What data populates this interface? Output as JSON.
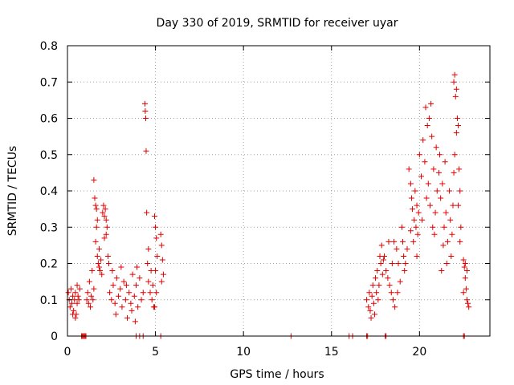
{
  "chart_data": {
    "type": "scatter",
    "title": "Day 330 of 2019, SRMTID for receiver uyar",
    "xlabel": "GPS time / hours",
    "ylabel": "SRMTID / TECUs",
    "xlim": [
      0,
      24
    ],
    "ylim": [
      0,
      0.8
    ],
    "grid": true,
    "marker": "+",
    "series_color": "#e00000",
    "x_ticks": [
      "0",
      "5",
      "10",
      "15",
      "20"
    ],
    "x_tick_values": [
      0,
      5,
      10,
      15,
      20
    ],
    "y_ticks": [
      "0",
      "0.1",
      "0.2",
      "0.3",
      "0.4",
      "0.5",
      "0.6",
      "0.7",
      "0.8"
    ],
    "y_tick_values": [
      0,
      0.1,
      0.2,
      0.3,
      0.4,
      0.5,
      0.6,
      0.7,
      0.8
    ],
    "series": [
      {
        "name": "SRMTID",
        "points": [
          [
            0.05,
            0.12
          ],
          [
            0.1,
            0.1
          ],
          [
            0.15,
            0.08
          ],
          [
            0.2,
            0.13
          ],
          [
            0.25,
            0.09
          ],
          [
            0.3,
            0.11
          ],
          [
            0.35,
            0.07
          ],
          [
            0.4,
            0.1
          ],
          [
            0.45,
            0.12
          ],
          [
            0.5,
            0.06
          ],
          [
            0.55,
            0.09
          ],
          [
            0.6,
            0.11
          ],
          [
            0.65,
            0.1
          ],
          [
            0.7,
            0.13
          ],
          [
            0.3,
            0.06
          ],
          [
            0.45,
            0.05
          ],
          [
            0.55,
            0.14
          ],
          [
            0.8,
            0.0
          ],
          [
            0.85,
            0.0
          ],
          [
            0.9,
            0.0
          ],
          [
            0.95,
            0.0
          ],
          [
            1.0,
            0.0
          ],
          [
            1.05,
            0.0
          ],
          [
            1.1,
            0.1
          ],
          [
            1.15,
            0.12
          ],
          [
            1.2,
            0.09
          ],
          [
            1.25,
            0.15
          ],
          [
            1.3,
            0.08
          ],
          [
            1.35,
            0.11
          ],
          [
            1.4,
            0.18
          ],
          [
            1.45,
            0.1
          ],
          [
            1.5,
            0.13
          ],
          [
            1.5,
            0.43
          ],
          [
            1.55,
            0.38
          ],
          [
            1.6,
            0.36
          ],
          [
            1.65,
            0.3
          ],
          [
            1.6,
            0.26
          ],
          [
            1.7,
            0.22
          ],
          [
            1.75,
            0.2
          ],
          [
            1.8,
            0.24
          ],
          [
            1.85,
            0.18
          ],
          [
            1.9,
            0.21
          ],
          [
            1.95,
            0.17
          ],
          [
            1.7,
            0.32
          ],
          [
            1.65,
            0.35
          ],
          [
            1.8,
            0.19
          ],
          [
            2.0,
            0.34
          ],
          [
            2.05,
            0.36
          ],
          [
            2.1,
            0.33
          ],
          [
            2.15,
            0.35
          ],
          [
            2.2,
            0.32
          ],
          [
            2.25,
            0.3
          ],
          [
            2.1,
            0.27
          ],
          [
            2.2,
            0.28
          ],
          [
            2.3,
            0.22
          ],
          [
            2.35,
            0.2
          ],
          [
            2.4,
            0.12
          ],
          [
            2.5,
            0.1
          ],
          [
            2.6,
            0.14
          ],
          [
            2.7,
            0.09
          ],
          [
            2.8,
            0.16
          ],
          [
            2.9,
            0.11
          ],
          [
            3.0,
            0.13
          ],
          [
            3.1,
            0.08
          ],
          [
            3.2,
            0.15
          ],
          [
            3.3,
            0.1
          ],
          [
            3.4,
            0.05
          ],
          [
            3.5,
            0.12
          ],
          [
            3.6,
            0.09
          ],
          [
            3.7,
            0.17
          ],
          [
            3.8,
            0.11
          ],
          [
            3.9,
            0.14
          ],
          [
            4.0,
            0.08
          ],
          [
            4.1,
            0.16
          ],
          [
            4.2,
            0.1
          ],
          [
            4.3,
            0.12
          ],
          [
            2.55,
            0.18
          ],
          [
            2.75,
            0.06
          ],
          [
            3.05,
            0.19
          ],
          [
            3.35,
            0.14
          ],
          [
            3.65,
            0.07
          ],
          [
            3.95,
            0.19
          ],
          [
            3.85,
            0.04
          ],
          [
            4.4,
            0.64
          ],
          [
            4.42,
            0.62
          ],
          [
            4.45,
            0.6
          ],
          [
            4.47,
            0.51
          ],
          [
            4.5,
            0.34
          ],
          [
            4.55,
            0.2
          ],
          [
            4.6,
            0.15
          ],
          [
            4.7,
            0.12
          ],
          [
            4.8,
            0.1
          ],
          [
            4.9,
            0.08
          ],
          [
            4.6,
            0.24
          ],
          [
            4.75,
            0.18
          ],
          [
            4.85,
            0.14
          ],
          [
            4.95,
            0.33
          ],
          [
            5.0,
            0.3
          ],
          [
            5.05,
            0.27
          ],
          [
            5.1,
            0.22
          ],
          [
            5.0,
            0.18
          ],
          [
            5.05,
            0.12
          ],
          [
            4.95,
            0.08
          ],
          [
            5.3,
            0.28
          ],
          [
            5.35,
            0.25
          ],
          [
            5.4,
            0.21
          ],
          [
            5.45,
            0.17
          ],
          [
            5.35,
            0.15
          ],
          [
            3.9,
            0.0
          ],
          [
            4.1,
            0.0
          ],
          [
            4.3,
            0.0
          ],
          [
            5.3,
            0.0
          ],
          [
            12.7,
            0.0
          ],
          [
            16.0,
            0.0
          ],
          [
            16.2,
            0.0
          ],
          [
            17.0,
            0.0
          ],
          [
            17.05,
            0.0
          ],
          [
            18.05,
            0.0
          ],
          [
            18.1,
            0.0
          ],
          [
            17.0,
            0.1
          ],
          [
            17.1,
            0.08
          ],
          [
            17.15,
            0.12
          ],
          [
            17.2,
            0.07
          ],
          [
            17.3,
            0.11
          ],
          [
            17.35,
            0.14
          ],
          [
            17.4,
            0.09
          ],
          [
            17.5,
            0.16
          ],
          [
            17.55,
            0.12
          ],
          [
            17.6,
            0.18
          ],
          [
            17.7,
            0.14
          ],
          [
            17.75,
            0.22
          ],
          [
            17.8,
            0.2
          ],
          [
            17.85,
            0.25
          ],
          [
            17.9,
            0.17
          ],
          [
            17.95,
            0.21
          ],
          [
            17.25,
            0.05
          ],
          [
            17.45,
            0.06
          ],
          [
            17.65,
            0.1
          ],
          [
            18.0,
            0.22
          ],
          [
            18.1,
            0.18
          ],
          [
            18.2,
            0.16
          ],
          [
            18.3,
            0.14
          ],
          [
            18.4,
            0.12
          ],
          [
            18.5,
            0.1
          ],
          [
            18.6,
            0.08
          ],
          [
            18.45,
            0.2
          ],
          [
            18.55,
            0.26
          ],
          [
            18.7,
            0.24
          ],
          [
            18.8,
            0.2
          ],
          [
            18.9,
            0.15
          ],
          [
            18.25,
            0.26
          ],
          [
            18.75,
            0.12
          ],
          [
            19.0,
            0.3
          ],
          [
            19.05,
            0.26
          ],
          [
            19.1,
            0.22
          ],
          [
            19.15,
            0.18
          ],
          [
            19.2,
            0.2
          ],
          [
            19.3,
            0.24
          ],
          [
            19.4,
            0.46
          ],
          [
            19.5,
            0.42
          ],
          [
            19.55,
            0.38
          ],
          [
            19.6,
            0.35
          ],
          [
            19.7,
            0.32
          ],
          [
            19.75,
            0.4
          ],
          [
            19.8,
            0.3
          ],
          [
            19.85,
            0.36
          ],
          [
            19.9,
            0.28
          ],
          [
            19.95,
            0.34
          ],
          [
            19.5,
            0.29
          ],
          [
            19.65,
            0.26
          ],
          [
            19.85,
            0.22
          ],
          [
            20.0,
            0.5
          ],
          [
            20.1,
            0.44
          ],
          [
            20.2,
            0.54
          ],
          [
            20.3,
            0.48
          ],
          [
            20.4,
            0.38
          ],
          [
            20.45,
            0.58
          ],
          [
            20.5,
            0.42
          ],
          [
            20.6,
            0.36
          ],
          [
            20.7,
            0.55
          ],
          [
            20.75,
            0.3
          ],
          [
            20.8,
            0.46
          ],
          [
            20.9,
            0.34
          ],
          [
            21.0,
            0.4
          ],
          [
            20.35,
            0.63
          ],
          [
            20.55,
            0.6
          ],
          [
            20.65,
            0.64
          ],
          [
            20.85,
            0.28
          ],
          [
            20.15,
            0.32
          ],
          [
            20.95,
            0.52
          ],
          [
            21.1,
            0.45
          ],
          [
            21.2,
            0.38
          ],
          [
            21.3,
            0.42
          ],
          [
            21.4,
            0.3
          ],
          [
            21.5,
            0.34
          ],
          [
            21.6,
            0.26
          ],
          [
            21.7,
            0.4
          ],
          [
            21.8,
            0.22
          ],
          [
            21.9,
            0.36
          ],
          [
            21.25,
            0.18
          ],
          [
            21.35,
            0.25
          ],
          [
            21.45,
            0.48
          ],
          [
            21.55,
            0.2
          ],
          [
            21.75,
            0.32
          ],
          [
            21.85,
            0.28
          ],
          [
            21.15,
            0.5
          ],
          [
            21.95,
            0.7
          ],
          [
            22.0,
            0.72
          ],
          [
            22.05,
            0.66
          ],
          [
            22.1,
            0.68
          ],
          [
            22.15,
            0.6
          ],
          [
            22.2,
            0.58
          ],
          [
            22.25,
            0.46
          ],
          [
            22.3,
            0.4
          ],
          [
            22.35,
            0.3
          ],
          [
            22.0,
            0.5
          ],
          [
            22.1,
            0.56
          ],
          [
            22.2,
            0.36
          ],
          [
            22.3,
            0.26
          ],
          [
            21.95,
            0.45
          ],
          [
            22.5,
            0.21
          ],
          [
            22.55,
            0.19
          ],
          [
            22.6,
            0.16
          ],
          [
            22.65,
            0.13
          ],
          [
            22.7,
            0.1
          ],
          [
            22.75,
            0.09
          ],
          [
            22.8,
            0.08
          ],
          [
            22.6,
            0.2
          ],
          [
            22.7,
            0.18
          ],
          [
            22.5,
            0.12
          ],
          [
            22.5,
            0.0
          ],
          [
            22.55,
            0.0
          ]
        ]
      }
    ]
  }
}
